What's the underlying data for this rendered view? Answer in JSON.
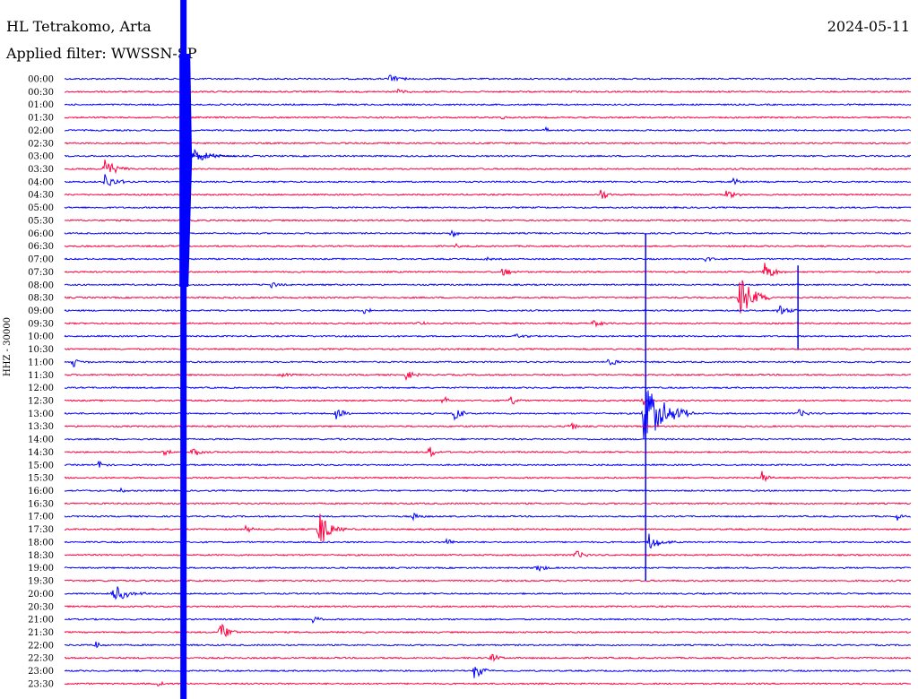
{
  "header": {
    "station": "HL Tetrakomo, Arta",
    "filter": "Applied filter: WWSSN-SP",
    "date": "2024-05-11"
  },
  "chart_data": {
    "type": "line",
    "title": "HL Tetrakomo, Arta",
    "subtitle": "Applied filter: WWSSN-SP",
    "date": "2024-05-11",
    "ylabel": "HHZ - 30000",
    "line_labels": [
      "00:00",
      "00:30",
      "01:00",
      "01:30",
      "02:00",
      "02:30",
      "03:00",
      "03:30",
      "04:00",
      "04:30",
      "05:00",
      "05:30",
      "06:00",
      "06:30",
      "07:00",
      "07:30",
      "08:00",
      "08:30",
      "09:00",
      "09:30",
      "10:00",
      "10:30",
      "11:00",
      "11:30",
      "12:00",
      "12:30",
      "13:00",
      "13:30",
      "14:00",
      "14:30",
      "15:00",
      "15:30",
      "16:00",
      "16:30",
      "17:00",
      "17:30",
      "18:00",
      "18:30",
      "19:00",
      "19:30",
      "20:00",
      "20:30",
      "21:00",
      "21:30",
      "22:00",
      "22:30",
      "23:00",
      "23:30"
    ],
    "colors": [
      "#0000ff",
      "#ff0040"
    ],
    "x_minutes_per_line": 30,
    "events": [
      {
        "row": 0,
        "minute": 11.5,
        "amp": 5,
        "dur": 1.0
      },
      {
        "row": 1,
        "minute": 11.8,
        "amp": 4,
        "dur": 0.8
      },
      {
        "row": 3,
        "minute": 15.5,
        "amp": 3,
        "dur": 0.5
      },
      {
        "row": 4,
        "minute": 17.0,
        "amp": 8,
        "dur": 0.3
      },
      {
        "row": 7,
        "minute": 1.4,
        "amp": 14,
        "dur": 1.0
      },
      {
        "row": 8,
        "minute": 1.4,
        "amp": 10,
        "dur": 1.0
      },
      {
        "row": 8,
        "minute": 23.7,
        "amp": 5,
        "dur": 0.6
      },
      {
        "row": 9,
        "minute": 19.0,
        "amp": 9,
        "dur": 0.6
      },
      {
        "row": 9,
        "minute": 23.4,
        "amp": 6,
        "dur": 0.8
      },
      {
        "row": 12,
        "minute": 13.7,
        "amp": 8,
        "dur": 0.4
      },
      {
        "row": 13,
        "minute": 13.7,
        "amp": 6,
        "dur": 0.5
      },
      {
        "row": 14,
        "minute": 22.7,
        "amp": 5,
        "dur": 0.5
      },
      {
        "row": 14,
        "minute": 14.9,
        "amp": 3,
        "dur": 0.4
      },
      {
        "row": 15,
        "minute": 15.5,
        "amp": 6,
        "dur": 0.8
      },
      {
        "row": 15,
        "minute": 24.8,
        "amp": 12,
        "dur": 0.8
      },
      {
        "row": 16,
        "minute": 7.3,
        "amp": 5,
        "dur": 0.6
      },
      {
        "row": 17,
        "minute": 23.9,
        "amp": 28,
        "dur": 1.2
      },
      {
        "row": 18,
        "minute": 10.6,
        "amp": 6,
        "dur": 0.7
      },
      {
        "row": 18,
        "minute": 25.3,
        "amp": 7,
        "dur": 0.8
      },
      {
        "row": 19,
        "minute": 12.5,
        "amp": 5,
        "dur": 0.5
      },
      {
        "row": 19,
        "minute": 18.7,
        "amp": 6,
        "dur": 0.6
      },
      {
        "row": 20,
        "minute": 16.0,
        "amp": 4,
        "dur": 0.6
      },
      {
        "row": 22,
        "minute": 0.3,
        "amp": 6,
        "dur": 0.6
      },
      {
        "row": 22,
        "minute": 19.3,
        "amp": 7,
        "dur": 0.7
      },
      {
        "row": 23,
        "minute": 7.6,
        "amp": 5,
        "dur": 0.6
      },
      {
        "row": 23,
        "minute": 12.1,
        "amp": 7,
        "dur": 0.6
      },
      {
        "row": 25,
        "minute": 13.4,
        "amp": 8,
        "dur": 0.5
      },
      {
        "row": 25,
        "minute": 15.8,
        "amp": 7,
        "dur": 0.5
      },
      {
        "row": 25,
        "minute": 20.5,
        "amp": 7,
        "dur": 0.5
      },
      {
        "row": 26,
        "minute": 20.5,
        "amp": 40,
        "dur": 1.8
      },
      {
        "row": 26,
        "minute": 9.6,
        "amp": 10,
        "dur": 0.6
      },
      {
        "row": 26,
        "minute": 13.8,
        "amp": 11,
        "dur": 0.6
      },
      {
        "row": 26,
        "minute": 26.0,
        "amp": 5,
        "dur": 0.8
      },
      {
        "row": 27,
        "minute": 17.9,
        "amp": 6,
        "dur": 0.6
      },
      {
        "row": 28,
        "minute": 9.7,
        "amp": 2,
        "dur": 0.5
      },
      {
        "row": 29,
        "minute": 3.5,
        "amp": 8,
        "dur": 0.6
      },
      {
        "row": 29,
        "minute": 4.5,
        "amp": 8,
        "dur": 0.6
      },
      {
        "row": 29,
        "minute": 12.9,
        "amp": 9,
        "dur": 0.5
      },
      {
        "row": 30,
        "minute": 1.2,
        "amp": 5,
        "dur": 0.5
      },
      {
        "row": 31,
        "minute": 24.7,
        "amp": 8,
        "dur": 0.6
      },
      {
        "row": 32,
        "minute": 1.9,
        "amp": 4,
        "dur": 0.5
      },
      {
        "row": 34,
        "minute": 12.3,
        "amp": 6,
        "dur": 0.6
      },
      {
        "row": 34,
        "minute": 29.5,
        "amp": 5,
        "dur": 0.4
      },
      {
        "row": 35,
        "minute": 9.0,
        "amp": 25,
        "dur": 1.0
      },
      {
        "row": 35,
        "minute": 6.4,
        "amp": 5,
        "dur": 0.5
      },
      {
        "row": 36,
        "minute": 20.7,
        "amp": 10,
        "dur": 1.0
      },
      {
        "row": 36,
        "minute": 13.5,
        "amp": 5,
        "dur": 0.6
      },
      {
        "row": 37,
        "minute": 18.1,
        "amp": 6,
        "dur": 0.7
      },
      {
        "row": 38,
        "minute": 16.7,
        "amp": 7,
        "dur": 0.6
      },
      {
        "row": 40,
        "minute": 1.7,
        "amp": 12,
        "dur": 1.2
      },
      {
        "row": 42,
        "minute": 8.8,
        "amp": 5,
        "dur": 0.6
      },
      {
        "row": 43,
        "minute": 5.5,
        "amp": 14,
        "dur": 0.8
      },
      {
        "row": 44,
        "minute": 1.1,
        "amp": 6,
        "dur": 0.5
      },
      {
        "row": 45,
        "minute": 15.1,
        "amp": 6,
        "dur": 0.6
      },
      {
        "row": 46,
        "minute": 14.5,
        "amp": 10,
        "dur": 0.8
      },
      {
        "row": 47,
        "minute": 3.3,
        "amp": 3,
        "dur": 0.5
      }
    ],
    "spike": {
      "minute": 4.2,
      "row_start": 0,
      "row_end": 47
    }
  }
}
